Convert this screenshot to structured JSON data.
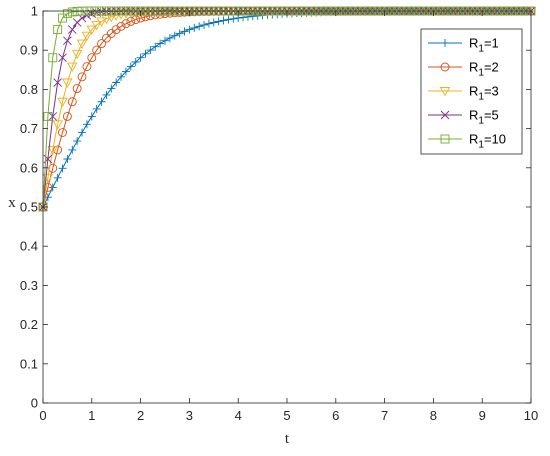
{
  "chart_data": {
    "type": "line",
    "xlabel": "t",
    "ylabel": "x",
    "xlim": [
      0,
      10
    ],
    "ylim": [
      0,
      1
    ],
    "xticks": [
      "0",
      "1",
      "2",
      "3",
      "4",
      "5",
      "6",
      "7",
      "8",
      "9",
      "10"
    ],
    "yticks": [
      "0",
      "0.1",
      "0.2",
      "0.3",
      "0.4",
      "0.5",
      "0.6",
      "0.7",
      "0.8",
      "0.9",
      "1"
    ],
    "grid": false,
    "legend_position": "top-right",
    "x0": 0.5,
    "sample_step": 0.1,
    "series": [
      {
        "label_main": "R",
        "label_sub": "1",
        "label_rest": "=1",
        "rate": 1,
        "color": "#0072BD",
        "marker": "plus"
      },
      {
        "label_main": "R",
        "label_sub": "1",
        "label_rest": "=2",
        "rate": 2,
        "color": "#D95319",
        "marker": "circle"
      },
      {
        "label_main": "R",
        "label_sub": "1",
        "label_rest": "=3",
        "rate": 3,
        "color": "#EDB120",
        "marker": "triangle-down"
      },
      {
        "label_main": "R",
        "label_sub": "1",
        "label_rest": "=5",
        "rate": 5,
        "color": "#7E2F8E",
        "marker": "cross"
      },
      {
        "label_main": "R",
        "label_sub": "1",
        "label_rest": "=10",
        "rate": 10,
        "color": "#77AC30",
        "marker": "square"
      }
    ]
  }
}
